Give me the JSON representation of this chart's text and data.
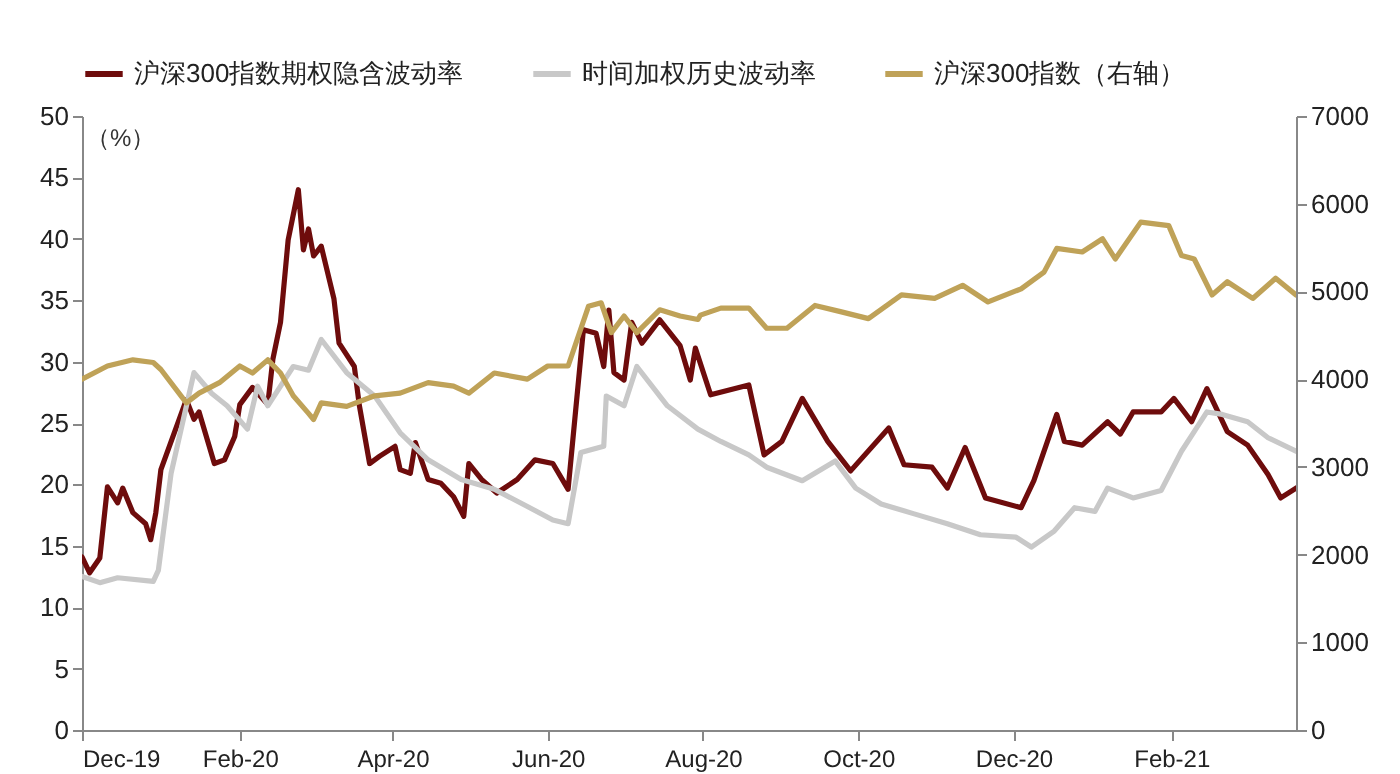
{
  "chart_data": {
    "type": "line",
    "ylabel": "（%）",
    "legend": "top",
    "grid": false,
    "xlim": [
      "2019-12-01",
      "2021-03-22"
    ],
    "xticks": [
      {
        "value": "2019-12-01",
        "label": "Dec-19"
      },
      {
        "value": "2020-02-01",
        "label": "Feb-20"
      },
      {
        "value": "2020-04-01",
        "label": "Apr-20"
      },
      {
        "value": "2020-06-01",
        "label": "Jun-20"
      },
      {
        "value": "2020-08-01",
        "label": "Aug-20"
      },
      {
        "value": "2020-10-01",
        "label": "Oct-20"
      },
      {
        "value": "2020-12-01",
        "label": "Dec-20"
      },
      {
        "value": "2021-02-01",
        "label": "Feb-21"
      }
    ],
    "ylim": [
      0,
      50
    ],
    "yticks": [
      0,
      5,
      10,
      15,
      20,
      25,
      30,
      35,
      40,
      45,
      50
    ],
    "y2lim": [
      0,
      7000
    ],
    "y2ticks": [
      0,
      1000,
      2000,
      3000,
      4000,
      5000,
      6000,
      7000
    ],
    "series": [
      {
        "name": "沪深300指数期权隐含波动率",
        "color": "#6e0c0c",
        "x": [
          "2019-12-01",
          "2019-12-04",
          "2019-12-08",
          "2019-12-11",
          "2019-12-15",
          "2019-12-17",
          "2019-12-21",
          "2019-12-26",
          "2019-12-28",
          "2019-12-30",
          "2020-01-01",
          "2020-01-11",
          "2020-01-14",
          "2020-01-16",
          "2020-01-22",
          "2020-01-26",
          "2020-01-30",
          "2020-02-01",
          "2020-02-06",
          "2020-02-12",
          "2020-02-14",
          "2020-02-17",
          "2020-02-20",
          "2020-02-24",
          "2020-02-26",
          "2020-02-28",
          "2020-03-01",
          "2020-03-04",
          "2020-03-09",
          "2020-03-11",
          "2020-03-17",
          "2020-03-19",
          "2020-03-23",
          "2020-03-27",
          "2020-04-02",
          "2020-04-04",
          "2020-04-08",
          "2020-04-10",
          "2020-04-15",
          "2020-04-20",
          "2020-04-25",
          "2020-04-29",
          "2020-05-01",
          "2020-05-06",
          "2020-05-12",
          "2020-05-20",
          "2020-05-27",
          "2020-06-03",
          "2020-06-09",
          "2020-06-15",
          "2020-06-20",
          "2020-06-23",
          "2020-06-25",
          "2020-06-27",
          "2020-07-01",
          "2020-07-04",
          "2020-07-08",
          "2020-07-15",
          "2020-07-23",
          "2020-07-27",
          "2020-07-29",
          "2020-08-04",
          "2020-08-19",
          "2020-08-25",
          "2020-09-01",
          "2020-09-09",
          "2020-09-19",
          "2020-09-28",
          "2020-10-13",
          "2020-10-19",
          "2020-10-30",
          "2020-11-05",
          "2020-11-12",
          "2020-11-20",
          "2020-12-04",
          "2020-12-09",
          "2020-12-18",
          "2020-12-21",
          "2020-12-28",
          "2021-01-07",
          "2021-01-12",
          "2021-01-17",
          "2021-01-28",
          "2021-02-02",
          "2021-02-09",
          "2021-02-15",
          "2021-02-18",
          "2021-02-23",
          "2021-03-03",
          "2021-03-11",
          "2021-03-16",
          "2021-03-22"
        ],
        "values": [
          14.1,
          12.8,
          14,
          19.8,
          18.5,
          19.7,
          17.7,
          16.8,
          15.5,
          17.7,
          21.2,
          26.9,
          25.3,
          25.9,
          21.7,
          22,
          23.9,
          26.5,
          27.9,
          26.5,
          30.2,
          33.2,
          39.9,
          44,
          39.1,
          40.8,
          38.6,
          39.4,
          35.1,
          31.5,
          29.6,
          26.4,
          21.7,
          22.3,
          23.1,
          21.2,
          20.9,
          23.4,
          20.4,
          20.1,
          19,
          17.4,
          21.7,
          20.4,
          19.3,
          20.4,
          22,
          21.7,
          19.6,
          32.6,
          32.3,
          29.6,
          34.2,
          29.1,
          28.5,
          33.2,
          31.5,
          33.4,
          31.3,
          28.5,
          31.1,
          27.3,
          28.1,
          22.4,
          23.5,
          27,
          23.5,
          21.1,
          24.6,
          21.6,
          21.4,
          19.7,
          23,
          18.9,
          18.1,
          20.3,
          25.7,
          23.5,
          23.2,
          25.1,
          24.1,
          25.9,
          25.9,
          27,
          25.1,
          27.8,
          26.5,
          24.3,
          23.2,
          20.8,
          18.9,
          19.7
        ]
      },
      {
        "name": "时间加权历史波动率",
        "color": "#c8c8c8",
        "x": [
          "2019-12-01",
          "2019-12-08",
          "2019-12-15",
          "2019-12-29",
          "2019-12-31",
          "2020-01-05",
          "2020-01-14",
          "2020-01-21",
          "2020-01-27",
          "2020-02-04",
          "2020-02-08",
          "2020-02-12",
          "2020-02-22",
          "2020-02-28",
          "2020-03-04",
          "2020-03-14",
          "2020-03-25",
          "2020-04-04",
          "2020-04-15",
          "2020-04-28",
          "2020-05-11",
          "2020-05-24",
          "2020-06-03",
          "2020-06-09",
          "2020-06-14",
          "2020-06-23",
          "2020-06-24",
          "2020-07-01",
          "2020-07-06",
          "2020-07-18",
          "2020-07-30",
          "2020-08-08",
          "2020-08-19",
          "2020-08-26",
          "2020-09-09",
          "2020-09-22",
          "2020-09-30",
          "2020-10-10",
          "2020-10-23",
          "2020-11-05",
          "2020-11-18",
          "2020-12-02",
          "2020-12-08",
          "2020-12-17",
          "2020-12-25",
          "2021-01-02",
          "2021-01-07",
          "2021-01-17",
          "2021-01-28",
          "2021-02-05",
          "2021-02-10",
          "2021-02-15",
          "2021-02-21",
          "2021-03-03",
          "2021-03-11",
          "2021-03-22"
        ],
        "values": [
          12.5,
          12,
          12.4,
          12.1,
          13,
          20.9,
          29.1,
          27.4,
          26.4,
          24.5,
          28,
          26.4,
          29.6,
          29.3,
          31.8,
          29.1,
          27.2,
          24.2,
          22,
          20.4,
          19.6,
          18.2,
          17.1,
          16.8,
          22.6,
          23.1,
          27.2,
          26.4,
          29.6,
          26.4,
          24.5,
          23.5,
          22.4,
          21.4,
          20.3,
          21.9,
          19.7,
          18.4,
          17.6,
          16.8,
          15.9,
          15.7,
          14.9,
          16.2,
          18.1,
          17.8,
          19.7,
          18.9,
          19.5,
          22.7,
          24.3,
          25.9,
          25.7,
          25.1,
          23.8,
          22.7
        ]
      },
      {
        "name": "沪深300指数（右轴）",
        "color": "#bfa258",
        "axis": "y2",
        "x": [
          "2019-12-01",
          "2019-12-11",
          "2019-12-21",
          "2019-12-29",
          "2020-01-01",
          "2020-01-11",
          "2020-01-16",
          "2020-01-24",
          "2020-02-01",
          "2020-02-06",
          "2020-02-12",
          "2020-02-17",
          "2020-02-22",
          "2020-02-28",
          "2020-03-01",
          "2020-03-04",
          "2020-03-14",
          "2020-03-25",
          "2020-04-04",
          "2020-04-15",
          "2020-04-25",
          "2020-05-01",
          "2020-05-11",
          "2020-05-24",
          "2020-06-01",
          "2020-06-09",
          "2020-06-17",
          "2020-06-22",
          "2020-06-26",
          "2020-07-01",
          "2020-07-06",
          "2020-07-15",
          "2020-07-23",
          "2020-07-30",
          "2020-07-31",
          "2020-08-08",
          "2020-08-19",
          "2020-08-26",
          "2020-09-03",
          "2020-09-14",
          "2020-09-24",
          "2020-10-05",
          "2020-10-18",
          "2020-10-31",
          "2020-11-11",
          "2020-11-21",
          "2020-12-04",
          "2020-12-13",
          "2020-12-18",
          "2020-12-28",
          "2021-01-05",
          "2021-01-10",
          "2021-01-20",
          "2021-01-31",
          "2021-02-05",
          "2021-02-10",
          "2021-02-17",
          "2021-02-23",
          "2021-03-05",
          "2021-03-14",
          "2021-03-22"
        ],
        "values": [
          4000,
          4150,
          4220,
          4190,
          4110,
          3730,
          3840,
          3960,
          4150,
          4070,
          4220,
          4070,
          3810,
          3610,
          3540,
          3730,
          3690,
          3810,
          3840,
          3960,
          3920,
          3840,
          4070,
          4000,
          4150,
          4150,
          4830,
          4870,
          4530,
          4720,
          4530,
          4790,
          4720,
          4680,
          4730,
          4810,
          4810,
          4580,
          4580,
          4840,
          4770,
          4690,
          4960,
          4920,
          5070,
          4880,
          5030,
          5220,
          5490,
          5450,
          5600,
          5370,
          5790,
          5750,
          5410,
          5370,
          4960,
          5110,
          4920,
          5150,
          4960
        ]
      }
    ]
  }
}
